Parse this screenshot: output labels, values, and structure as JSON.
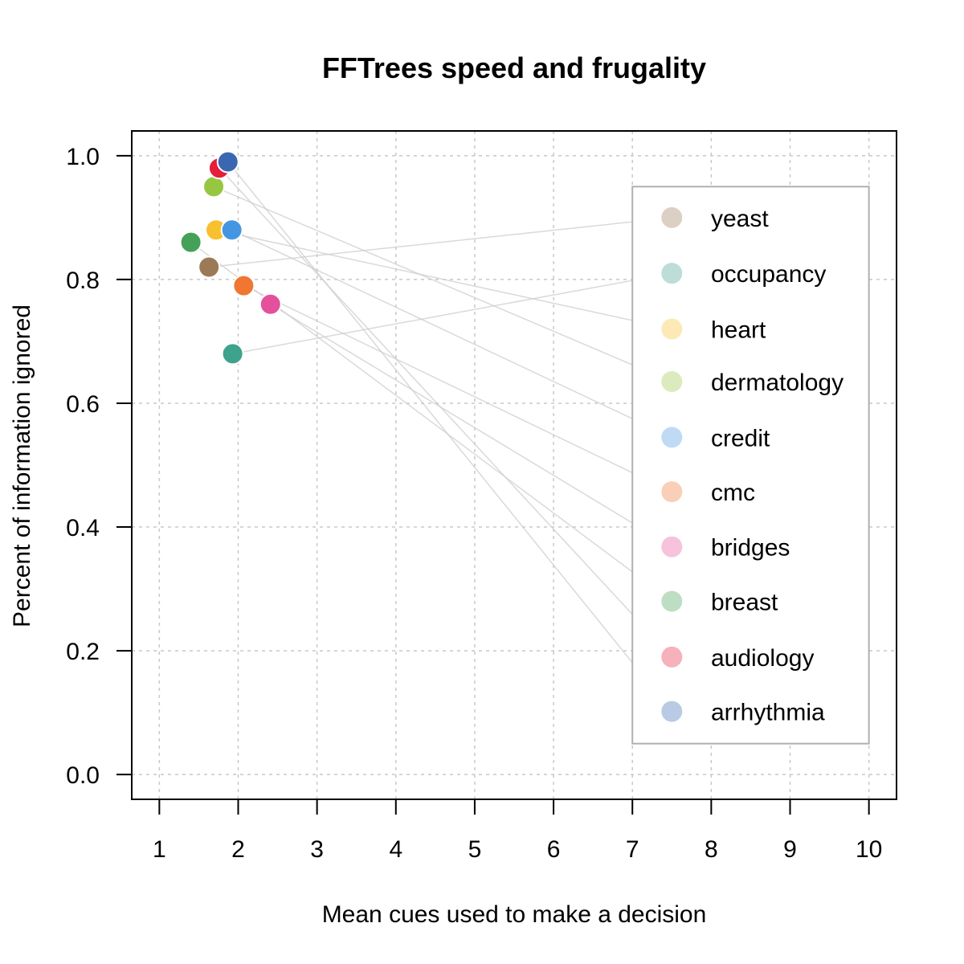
{
  "chart_data": {
    "type": "scatter",
    "title": "FFTrees speed and frugality",
    "xlabel": "Mean cues used to make a decision",
    "ylabel": "Percent of information ignored",
    "xlim": [
      0.65,
      10.35
    ],
    "ylim": [
      -0.04,
      1.04
    ],
    "xticks": [
      1,
      2,
      3,
      4,
      5,
      6,
      7,
      8,
      9,
      10
    ],
    "yticks": [
      0.0,
      0.2,
      0.4,
      0.6,
      0.8,
      1.0
    ],
    "ytick_labels": [
      "0.0",
      "0.2",
      "0.4",
      "0.6",
      "0.8",
      "1.0"
    ],
    "grid": true,
    "legend_position": "right",
    "legend_entry_y": [
      0.9,
      0.81,
      0.72,
      0.635,
      0.545,
      0.457,
      0.368,
      0.28,
      0.19,
      0.102
    ],
    "legend_box": {
      "x": [
        7.0,
        10.0
      ],
      "y": [
        0.05,
        0.95
      ]
    },
    "series": [
      {
        "name": "yeast",
        "color": "#9C7A55",
        "x": 1.63,
        "y": 0.82
      },
      {
        "name": "occupancy",
        "color": "#3FA28D",
        "x": 1.93,
        "y": 0.68
      },
      {
        "name": "heart",
        "color": "#F8C02F",
        "x": 1.72,
        "y": 0.88
      },
      {
        "name": "dermatology",
        "color": "#97C641",
        "x": 1.69,
        "y": 0.95
      },
      {
        "name": "credit",
        "color": "#4596E2",
        "x": 1.92,
        "y": 0.88
      },
      {
        "name": "cmc",
        "color": "#F07632",
        "x": 2.07,
        "y": 0.79
      },
      {
        "name": "bridges",
        "color": "#E4509B",
        "x": 2.41,
        "y": 0.76
      },
      {
        "name": "breast",
        "color": "#45A157",
        "x": 1.4,
        "y": 0.86
      },
      {
        "name": "audiology",
        "color": "#E41F3B",
        "x": 1.76,
        "y": 0.98
      },
      {
        "name": "arrhythmia",
        "color": "#3B67B2",
        "x": 1.87,
        "y": 0.99
      }
    ]
  }
}
